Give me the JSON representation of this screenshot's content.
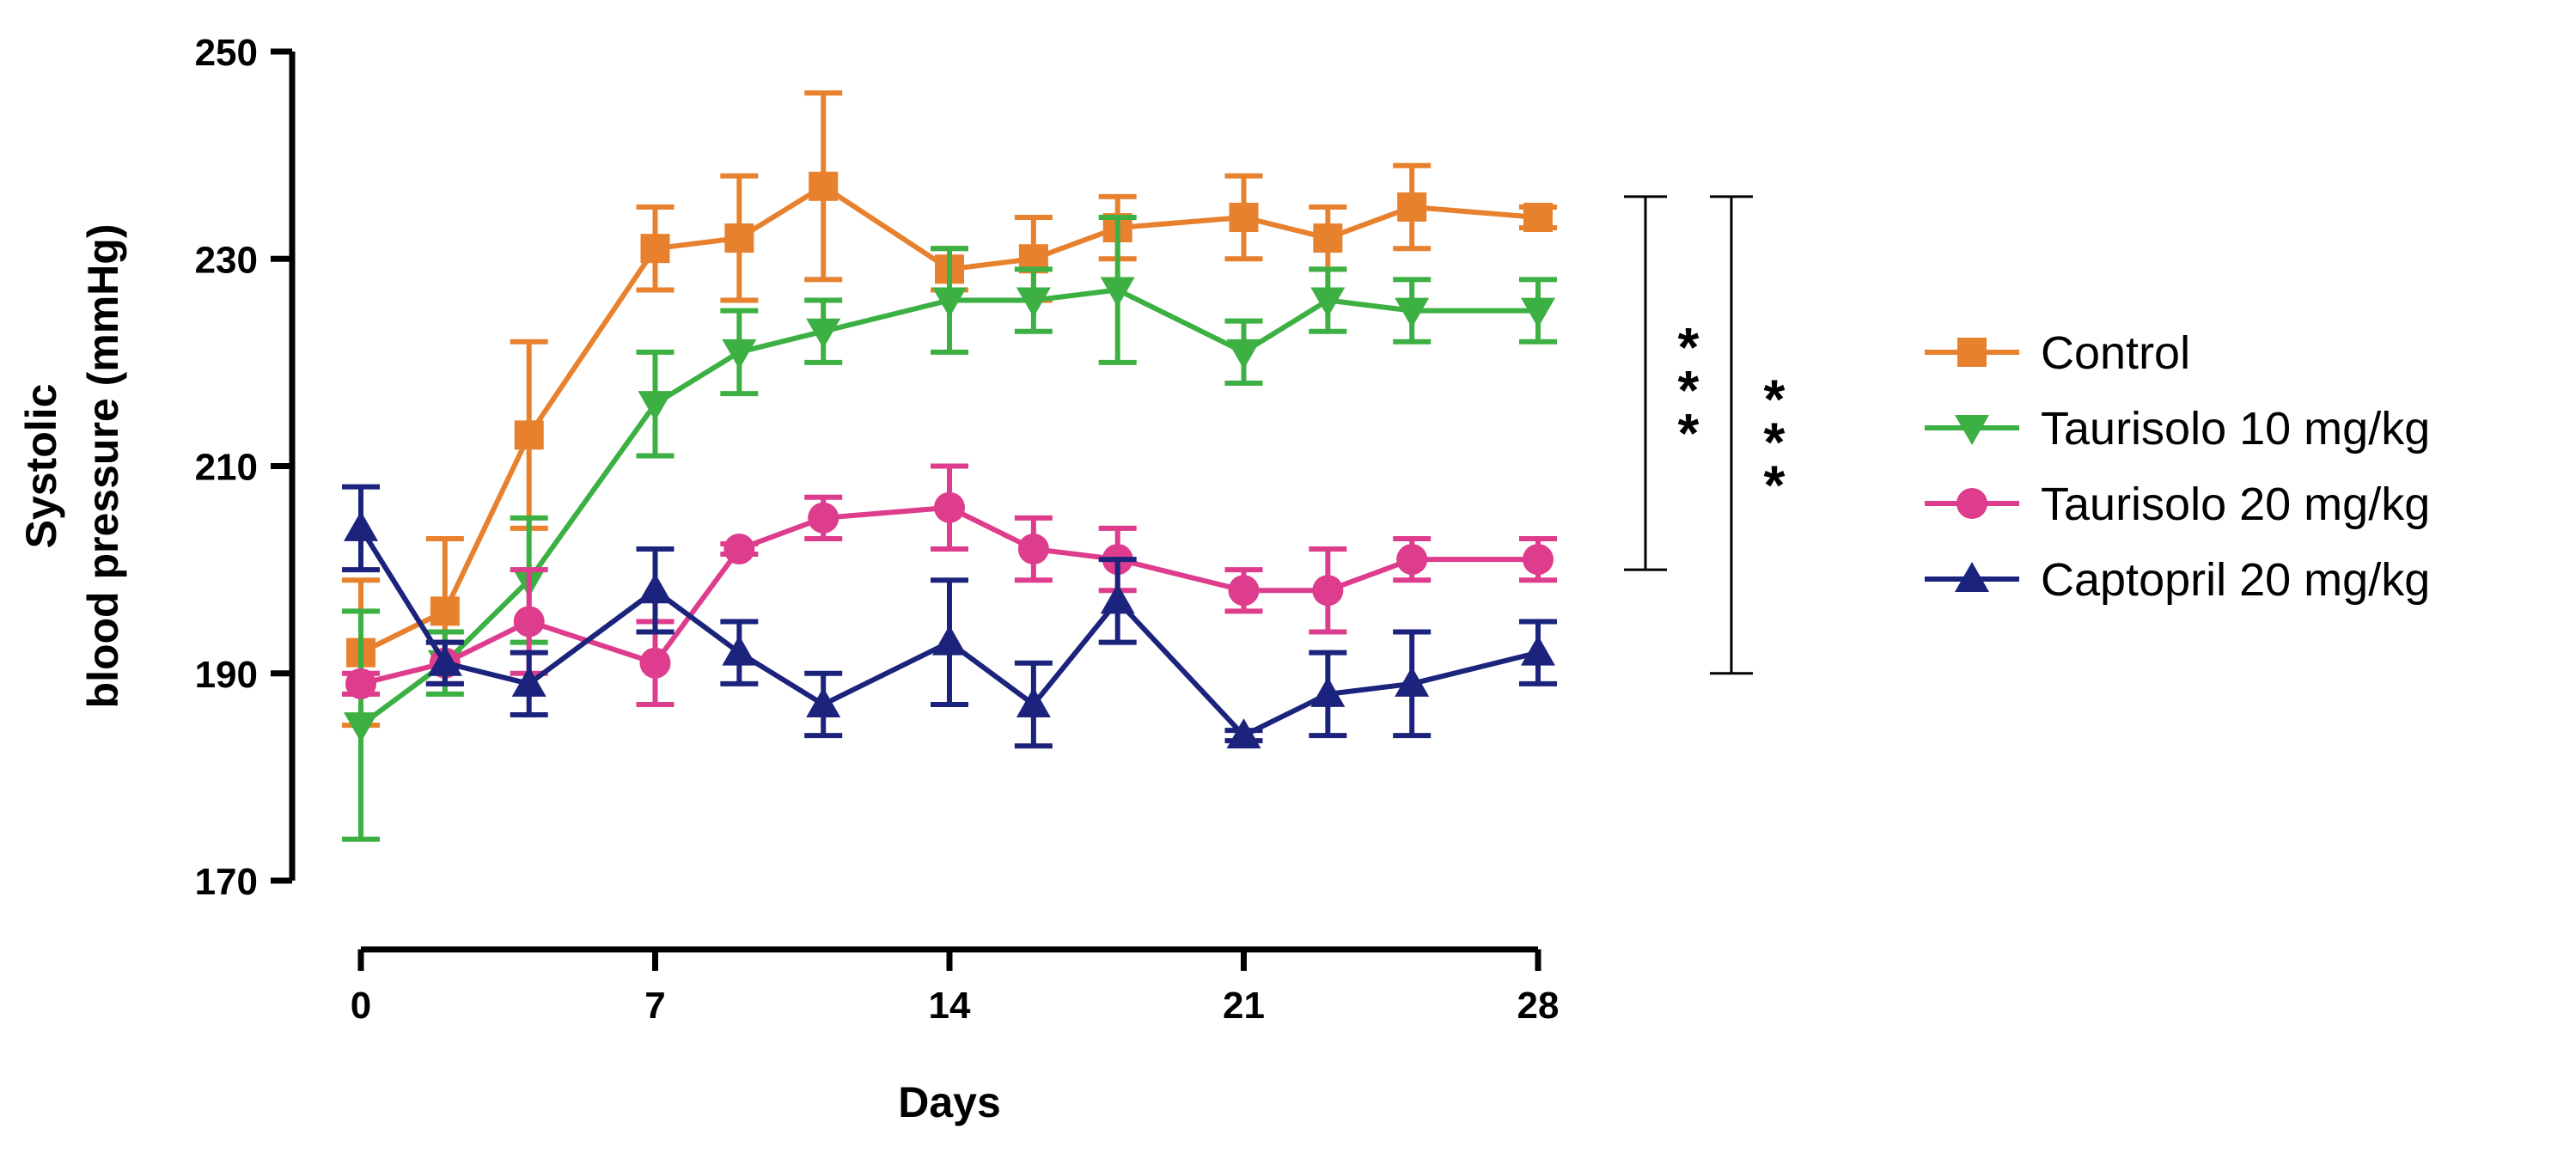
{
  "chart_data": {
    "type": "line",
    "title": "",
    "xlabel": "Days",
    "ylabel_lines": [
      "Systolic",
      "blood pressure (mmHg)"
    ],
    "xlim": [
      0,
      28
    ],
    "ylim": [
      170,
      250
    ],
    "x_ticks": [
      0,
      7,
      14,
      21,
      28
    ],
    "y_ticks": [
      170,
      190,
      210,
      230,
      250
    ],
    "grid": false,
    "legend_position": "right",
    "x": [
      0,
      2,
      4,
      7,
      9,
      11,
      14,
      16,
      18,
      21,
      23,
      25,
      28
    ],
    "series": [
      {
        "name": "Control",
        "color": "#E8812E",
        "marker": "square",
        "values": [
          192,
          196,
          213,
          231,
          232,
          237,
          229,
          230,
          233,
          234,
          232,
          235,
          234
        ],
        "errors": [
          7,
          7,
          9,
          4,
          6,
          9,
          2,
          4,
          3,
          4,
          3,
          4,
          1
        ]
      },
      {
        "name": "Taurisolo 10 mg/kg",
        "color": "#3CB043",
        "marker": "triangle-down",
        "values": [
          185,
          191,
          199,
          216,
          221,
          223,
          226,
          226,
          227,
          221,
          226,
          225,
          225
        ],
        "errors": [
          11,
          3,
          6,
          5,
          4,
          3,
          5,
          3,
          7,
          3,
          3,
          3,
          3
        ]
      },
      {
        "name": "Taurisolo 20 mg/kg",
        "color": "#DE3C8C",
        "marker": "circle",
        "values": [
          189,
          191,
          195,
          191,
          202,
          205,
          206,
          202,
          201,
          198,
          198,
          201,
          201
        ],
        "errors": [
          1,
          2,
          5,
          4,
          0.5,
          2,
          4,
          3,
          3,
          2,
          4,
          2,
          2
        ]
      },
      {
        "name": "Captopril 20 mg/kg",
        "color": "#1B237C",
        "marker": "triangle-up",
        "values": [
          204,
          191,
          189,
          198,
          192,
          187,
          193,
          187,
          197,
          184,
          188,
          189,
          192
        ],
        "errors": [
          4,
          2,
          3,
          4,
          3,
          3,
          6,
          4,
          4,
          0.5,
          4,
          5,
          3
        ]
      }
    ],
    "significance": [
      {
        "label": "***",
        "y_top": 236,
        "y_bottom": 200
      },
      {
        "label": "***",
        "y_top": 236,
        "y_bottom": 190
      }
    ]
  }
}
